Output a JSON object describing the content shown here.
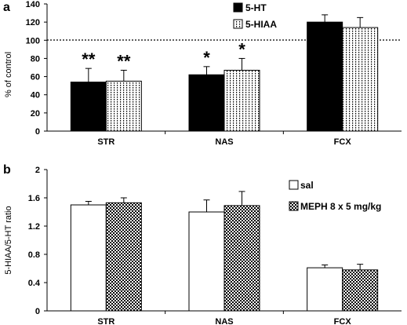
{
  "chart_data": [
    {
      "type": "bar",
      "panel_label": "a",
      "ylabel": "% of control",
      "ylim": [
        0,
        140
      ],
      "yticks": [
        0,
        20,
        40,
        60,
        80,
        100,
        120,
        140
      ],
      "categories": [
        "STR",
        "NAS",
        "FCX"
      ],
      "reference_line": 100,
      "legend_position": "top-center",
      "series": [
        {
          "name": "5-HT",
          "fill": "solid-black",
          "color": "#000000",
          "values": [
            54,
            62,
            120
          ],
          "errors": [
            15,
            9,
            8
          ],
          "annotations": [
            "**",
            "*",
            ""
          ]
        },
        {
          "name": "5-HIAA",
          "fill": "dotted-vertical",
          "color": "#000000",
          "values": [
            55,
            67,
            114
          ],
          "errors": [
            12,
            13,
            11
          ],
          "annotations": [
            "**",
            "*",
            ""
          ]
        }
      ]
    },
    {
      "type": "bar",
      "panel_label": "b",
      "ylabel": "5-HIAA/5-HT ratio",
      "ylim": [
        0,
        2
      ],
      "yticks": [
        "0",
        "0.4",
        "0.8",
        "1.2",
        "1.6",
        "2"
      ],
      "categories": [
        "STR",
        "NAS",
        "FCX"
      ],
      "legend_position": "top-right",
      "series": [
        {
          "name": "sal",
          "fill": "white",
          "color": "#ffffff",
          "values": [
            1.5,
            1.4,
            0.61
          ],
          "errors": [
            0.05,
            0.17,
            0.04
          ]
        },
        {
          "name": "MEPH 8 x 5 mg/kg",
          "fill": "checkered",
          "color": "#000000",
          "values": [
            1.53,
            1.49,
            0.58
          ],
          "errors": [
            0.07,
            0.2,
            0.08
          ]
        }
      ]
    }
  ]
}
